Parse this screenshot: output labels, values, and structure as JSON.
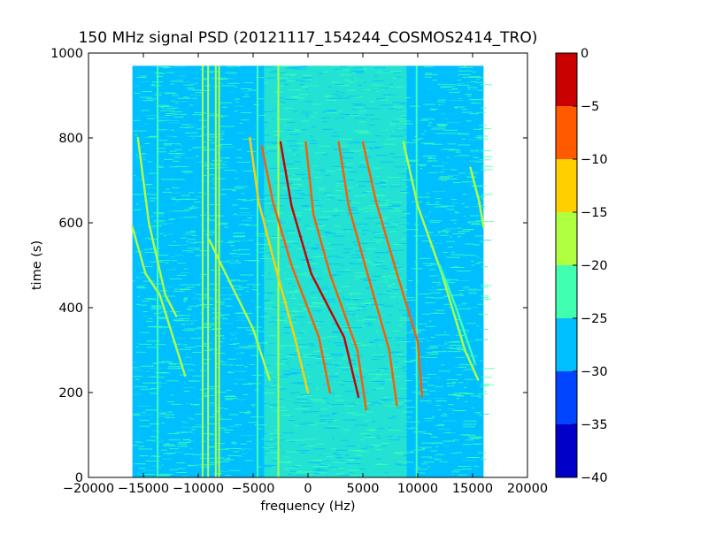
{
  "chart_data": {
    "type": "heatmap",
    "title": "150 MHz signal PSD (20121117_154244_COSMOS2414_TRO)",
    "xlabel": "frequency (Hz)",
    "ylabel": "time (s)",
    "xlim": [
      -20000,
      20000
    ],
    "ylim": [
      0,
      1000
    ],
    "x_ticks": [
      -20000,
      -15000,
      -10000,
      -5000,
      0,
      5000,
      10000,
      15000,
      20000
    ],
    "x_tick_labels": [
      "−20000",
      "−15000",
      "−10000",
      "−5000",
      "0",
      "5000",
      "10000",
      "15000",
      "20000"
    ],
    "y_ticks": [
      0,
      200,
      400,
      600,
      800,
      1000
    ],
    "y_tick_labels": [
      "0",
      "200",
      "400",
      "600",
      "800",
      "1000"
    ],
    "data_extent": {
      "x": [
        -16000,
        16000
      ],
      "y": [
        0,
        970
      ]
    },
    "colorbar": {
      "range": [
        -40,
        0
      ],
      "ticks": [
        0,
        -5,
        -10,
        -15,
        -20,
        -25,
        -30,
        -35,
        -40
      ],
      "tick_labels": [
        "0",
        "−5",
        "−10",
        "−15",
        "−20",
        "−25",
        "−30",
        "−35",
        "−40"
      ],
      "levels": [
        {
          "from": -40,
          "to": -35,
          "color": "#0000c8"
        },
        {
          "from": -35,
          "to": -30,
          "color": "#0044ff"
        },
        {
          "from": -30,
          "to": -25,
          "color": "#00bfff"
        },
        {
          "from": -25,
          "to": -20,
          "color": "#40ffb0"
        },
        {
          "from": -20,
          "to": -15,
          "color": "#b0ff40"
        },
        {
          "from": -15,
          "to": -10,
          "color": "#ffd000"
        },
        {
          "from": -10,
          "to": -5,
          "color": "#ff5a00"
        },
        {
          "from": -5,
          "to": 0,
          "color": "#c80000"
        }
      ]
    },
    "background_level_color": "#00bfff",
    "central_band": {
      "x": [
        -4000,
        9000
      ],
      "color": "#40ffb0"
    },
    "vertical_lines": [
      {
        "x": -13700,
        "color": "#40ffb0"
      },
      {
        "x": -9600,
        "color": "#b0ff40"
      },
      {
        "x": -9100,
        "color": "#b0ff40"
      },
      {
        "x": -8400,
        "color": "#b0ff40"
      },
      {
        "x": -8100,
        "color": "#b0ff40"
      },
      {
        "x": -4600,
        "color": "#40ffb0"
      },
      {
        "x": -2700,
        "color": "#b0ff40"
      },
      {
        "x": 9900,
        "color": "#40ffb0"
      }
    ],
    "doppler_tracks": [
      {
        "x": [
          -16000,
          -14800,
          -13500,
          -11200
        ],
        "t": [
          590,
          480,
          430,
          240
        ],
        "color": "#b0ff40"
      },
      {
        "x": [
          -15500,
          -14500,
          -13000,
          -12000
        ],
        "t": [
          800,
          600,
          430,
          380
        ],
        "color": "#b0ff40"
      },
      {
        "x": [
          -9000,
          -7500,
          -5000,
          -3500
        ],
        "t": [
          560,
          480,
          350,
          230
        ],
        "color": "#b0ff40"
      },
      {
        "x": [
          -5300,
          -4500,
          -2800,
          -1200,
          0
        ],
        "t": [
          800,
          650,
          480,
          330,
          200
        ],
        "color": "#ffd000"
      },
      {
        "x": [
          -4200,
          -3200,
          -1500,
          1000,
          2000
        ],
        "t": [
          780,
          650,
          500,
          330,
          200
        ],
        "color": "#ff5a00"
      },
      {
        "x": [
          -2500,
          -1500,
          300,
          3300,
          4600
        ],
        "t": [
          790,
          640,
          480,
          330,
          190
        ],
        "color": "#c80000"
      },
      {
        "x": [
          -200,
          500,
          2000,
          4500,
          5300
        ],
        "t": [
          790,
          620,
          480,
          300,
          160
        ],
        "color": "#ff5a00"
      },
      {
        "x": [
          2800,
          3700,
          5200,
          7400,
          8100
        ],
        "t": [
          790,
          640,
          500,
          300,
          170
        ],
        "color": "#ff5a00"
      },
      {
        "x": [
          5000,
          6200,
          8000,
          10000,
          10400
        ],
        "t": [
          790,
          650,
          490,
          320,
          190
        ],
        "color": "#ff5a00"
      },
      {
        "x": [
          8700,
          10000,
          12200,
          14300,
          15500
        ],
        "t": [
          790,
          640,
          480,
          300,
          230
        ],
        "color": "#b0ff40"
      },
      {
        "x": [
          12000,
          13500,
          15200
        ],
        "t": [
          500,
          400,
          270
        ],
        "color": "#40ffb0"
      },
      {
        "x": [
          14800,
          15600,
          16000
        ],
        "t": [
          730,
          650,
          590
        ],
        "color": "#b0ff40"
      }
    ]
  }
}
